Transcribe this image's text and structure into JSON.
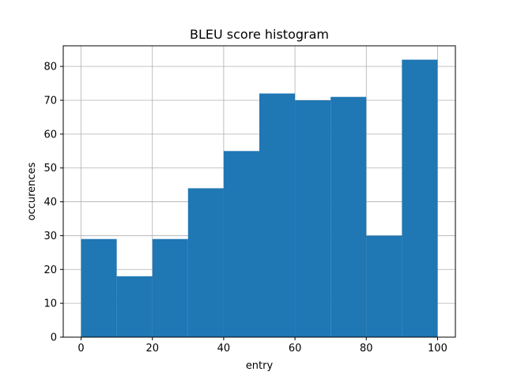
{
  "chart_data": {
    "type": "bar",
    "title": "BLEU score histogram",
    "xlabel": "entry",
    "ylabel": "occurences",
    "bin_edges": [
      0,
      10,
      20,
      30,
      40,
      50,
      60,
      70,
      80,
      90,
      100
    ],
    "values": [
      29,
      18,
      29,
      44,
      55,
      72,
      70,
      71,
      30,
      82
    ],
    "xlim": [
      -5,
      105
    ],
    "ylim": [
      0,
      86.1
    ],
    "xticks": [
      0,
      20,
      40,
      60,
      80,
      100
    ],
    "yticks": [
      0,
      10,
      20,
      30,
      40,
      50,
      60,
      70,
      80
    ],
    "grid": true,
    "bar_color": "#1f77b4",
    "grid_color": "#b0b0b0"
  }
}
